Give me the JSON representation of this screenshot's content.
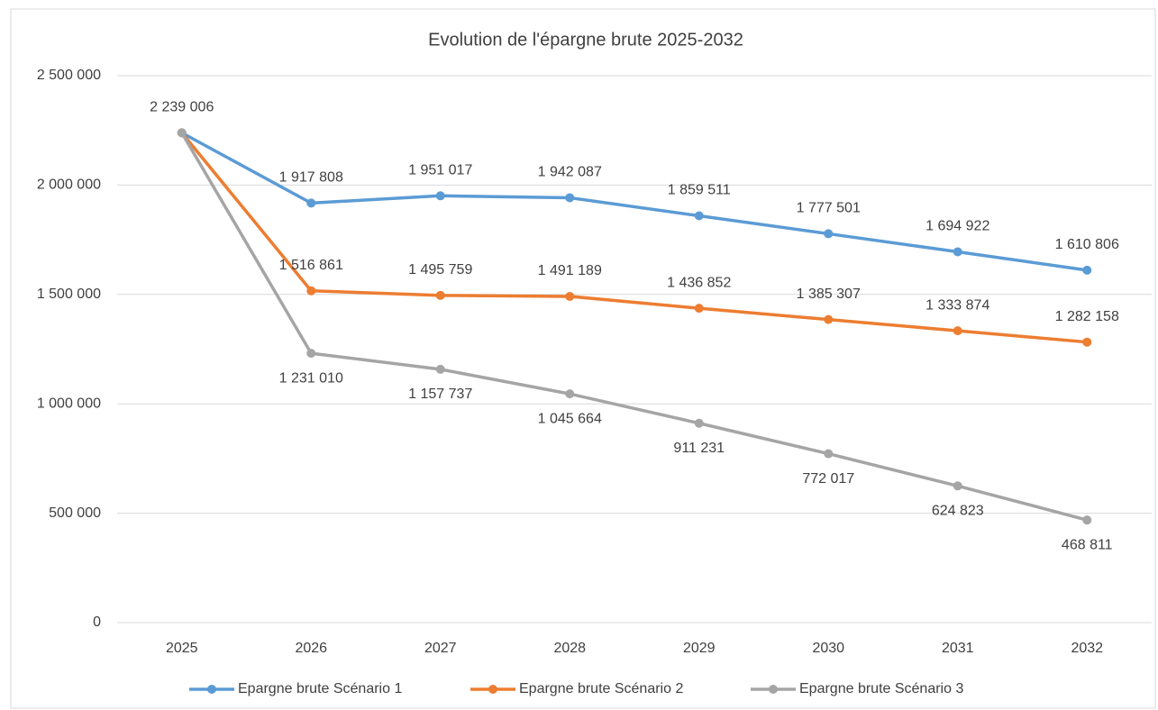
{
  "chart_data": {
    "type": "line",
    "title": "Evolution de l'épargne brute 2025-2032",
    "categories": [
      "2025",
      "2026",
      "2027",
      "2028",
      "2029",
      "2030",
      "2031",
      "2032"
    ],
    "series": [
      {
        "name": "Epargne brute Scénario 1",
        "color": "#5b9bd5",
        "values": [
          2239006,
          1917808,
          1951017,
          1942087,
          1859511,
          1777501,
          1694922,
          1610806
        ],
        "value_labels": [
          "2 239 006",
          "1 917 808",
          "1 951 017",
          "1 942 087",
          "1 859 511",
          "1 777 501",
          "1 694 922",
          "1 610 806"
        ]
      },
      {
        "name": "Epargne brute Scénario 2",
        "color": "#ed7d31",
        "values": [
          2239006,
          1516861,
          1495759,
          1491189,
          1436852,
          1385307,
          1333874,
          1282158
        ],
        "value_labels": [
          null,
          "1 516 861",
          "1 495 759",
          "1 491 189",
          "1 436 852",
          "1 385 307",
          "1 333 874",
          "1 282 158"
        ]
      },
      {
        "name": "Epargne brute Scénario 3",
        "color": "#a5a5a5",
        "values": [
          2239006,
          1231010,
          1157737,
          1045664,
          911231,
          772017,
          624823,
          468811
        ],
        "value_labels": [
          null,
          "1 231 010",
          "1 157 737",
          "1 045 664",
          "911 231",
          "772 017",
          "624 823",
          "468 811"
        ]
      }
    ],
    "ylim": [
      0,
      2500000
    ],
    "yticks": [
      0,
      {
        "value": 500000,
        "label": "500 000"
      },
      {
        "value": 1000000,
        "label": "1 000 000"
      },
      {
        "value": 1500000,
        "label": "1 500 000"
      },
      {
        "value": 2000000,
        "label": "2 000 000"
      },
      {
        "value": 2500000,
        "label": "2 500 000"
      }
    ],
    "grid": true,
    "legend": "bottom"
  }
}
